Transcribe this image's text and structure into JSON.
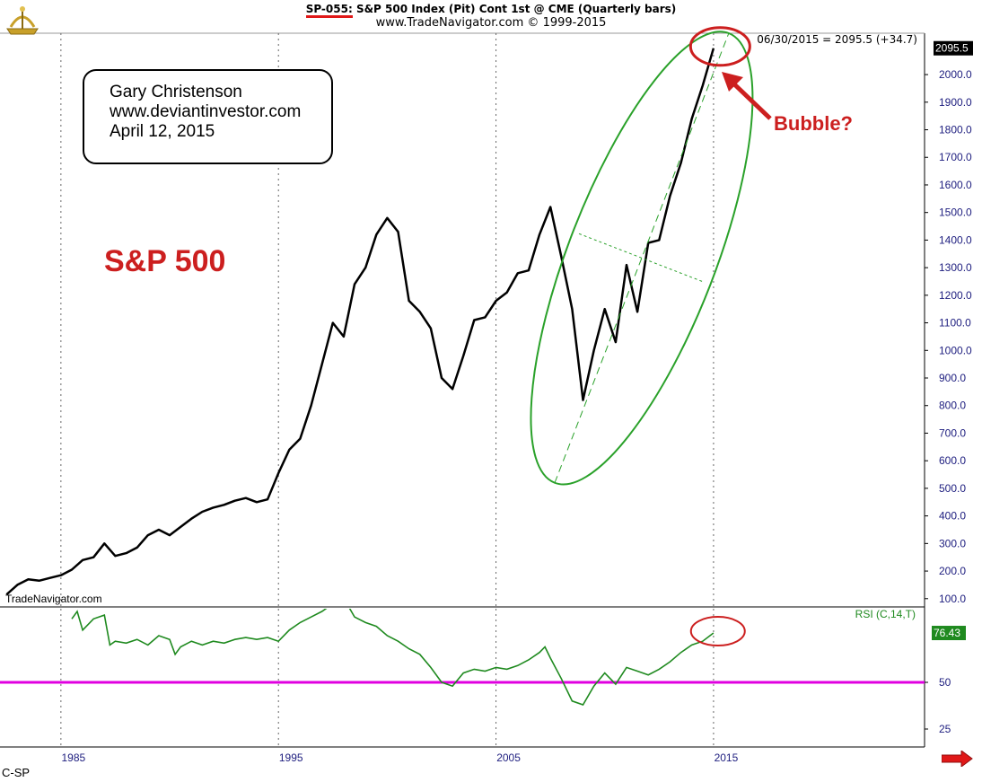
{
  "header": {
    "symbol": "SP-055:",
    "title": "S&P 500 Index (Pit) Cont 1st @ CME  (Quarterly bars)",
    "subtitle": "www.TradeNavigator.com © 1999-2015"
  },
  "last_bar": "06/30/2015 = 2095.5 (+34.7)",
  "watermark": "TradeNavigator.com",
  "status_symbol": "C-SP",
  "colors": {
    "price_line": "#000000",
    "rsi_line": "#1f8a1f",
    "reference_line": "#e000e0",
    "annotation": "#cc1f1f",
    "axis_text": "#202080",
    "ellipse": "#2aa12a"
  },
  "chart_data": [
    {
      "type": "line",
      "panel": "price",
      "title": "S&P 500",
      "annotation_box": [
        "Gary Christenson",
        "www.deviantinvestor.com",
        "April 12, 2015"
      ],
      "annotations": [
        "Bubble?"
      ],
      "last_value_label": "2095.5",
      "y_ticks": [
        "100.0",
        "200.0",
        "300.0",
        "400.0",
        "500.0",
        "600.0",
        "700.0",
        "800.0",
        "900.0",
        "1000.0",
        "1100.0",
        "1200.0",
        "1300.0",
        "1400.0",
        "1500.0",
        "1600.0",
        "1700.0",
        "1800.0",
        "1900.0",
        "2000.0"
      ],
      "ylim": [
        70,
        2150
      ],
      "grid": true,
      "series": [
        {
          "x": [
            1982.5,
            1983.0,
            1983.5,
            1984.0,
            1984.5,
            1985.0,
            1985.5,
            1986.0,
            1986.5,
            1987.0,
            1987.5,
            1988.0,
            1988.5,
            1989.0,
            1989.5,
            1990.0,
            1990.5,
            1991.0,
            1991.5,
            1992.0,
            1992.5,
            1993.0,
            1993.5,
            1994.0,
            1994.5,
            1995.0,
            1995.5,
            1996.0,
            1996.5,
            1997.0,
            1997.5,
            1998.0,
            1998.5,
            1999.0,
            1999.5,
            2000.0,
            2000.5,
            2001.0,
            2001.5,
            2002.0,
            2002.5,
            2003.0,
            2003.5,
            2004.0,
            2004.5,
            2005.0,
            2005.5,
            2006.0,
            2006.5,
            2007.0,
            2007.5,
            2008.0,
            2008.5,
            2009.0,
            2009.5,
            2010.0,
            2010.5,
            2011.0,
            2011.5,
            2012.0,
            2012.5,
            2013.0,
            2013.5,
            2014.0,
            2014.5,
            2015.0
          ],
          "y": [
            115,
            150,
            170,
            165,
            175,
            185,
            205,
            240,
            250,
            300,
            255,
            265,
            285,
            330,
            350,
            330,
            360,
            390,
            415,
            430,
            440,
            455,
            465,
            450,
            460,
            555,
            640,
            680,
            800,
            950,
            1100,
            1050,
            1240,
            1300,
            1420,
            1480,
            1430,
            1180,
            1140,
            1080,
            900,
            860,
            980,
            1110,
            1120,
            1180,
            1210,
            1280,
            1290,
            1420,
            1520,
            1340,
            1150,
            820,
            1000,
            1150,
            1030,
            1310,
            1140,
            1390,
            1400,
            1560,
            1680,
            1840,
            1960,
            2095.5
          ]
        }
      ]
    },
    {
      "type": "line",
      "panel": "indicator",
      "series_label": "RSI (C,14,T)",
      "last_value_label": "76.43",
      "y_ticks": [
        "25",
        "50"
      ],
      "reference_value": 50,
      "grid": true,
      "series": [
        {
          "x": [
            1985.5,
            1985.75,
            1986.0,
            1986.5,
            1987.0,
            1987.25,
            1987.5,
            1988.0,
            1988.5,
            1989.0,
            1989.5,
            1990.0,
            1990.25,
            1990.5,
            1991.0,
            1991.5,
            1992.0,
            1992.5,
            1993.0,
            1993.5,
            1994.0,
            1994.5,
            1995.0,
            1995.5,
            1996.0,
            1996.5,
            1997.0,
            1997.5,
            1998.0,
            1998.25,
            1998.5,
            1999.0,
            1999.5,
            2000.0,
            2000.5,
            2001.0,
            2001.5,
            2002.0,
            2002.5,
            2003.0,
            2003.5,
            2004.0,
            2004.5,
            2005.0,
            2005.5,
            2006.0,
            2006.5,
            2007.0,
            2007.25,
            2007.5,
            2008.0,
            2008.5,
            2009.0,
            2009.5,
            2010.0,
            2010.5,
            2011.0,
            2011.5,
            2012.0,
            2012.5,
            2013.0,
            2013.5,
            2014.0,
            2014.5,
            2015.0
          ],
          "y": [
            84,
            88,
            78,
            84,
            86,
            70,
            72,
            71,
            73,
            70,
            75,
            73,
            65,
            69,
            72,
            70,
            72,
            71,
            73,
            74,
            73,
            74,
            72,
            78,
            82,
            85,
            88,
            92,
            94,
            90,
            85,
            82,
            80,
            75,
            72,
            68,
            65,
            58,
            50,
            48,
            55,
            57,
            56,
            58,
            57,
            59,
            62,
            66,
            69,
            63,
            52,
            40,
            38,
            48,
            55,
            49,
            58,
            56,
            54,
            57,
            61,
            66,
            70,
            72,
            76.43
          ]
        }
      ]
    }
  ],
  "x_ticks": [
    "1985",
    "1995",
    "2005",
    "2015"
  ],
  "x_tick_values": [
    1985,
    1995,
    2005,
    2015
  ],
  "xlim": [
    1982.2,
    2024.7
  ]
}
